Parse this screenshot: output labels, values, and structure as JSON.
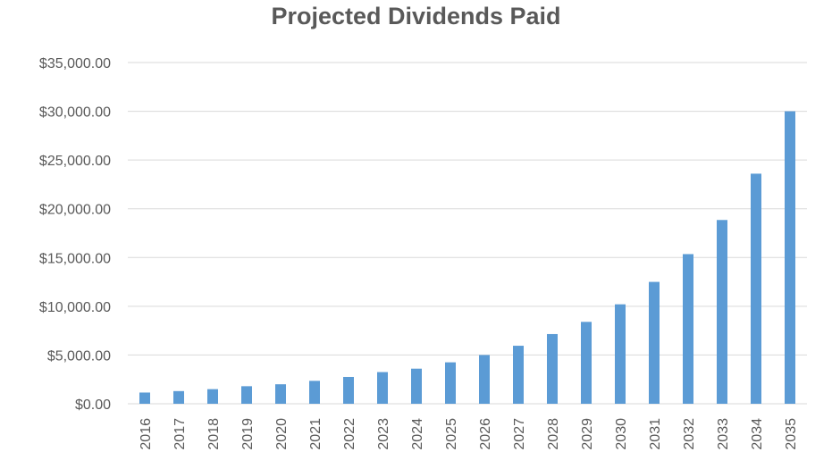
{
  "chart_data": {
    "type": "bar",
    "title": "Projected Dividends Paid",
    "xlabel": "",
    "ylabel": "",
    "ylim": [
      0,
      35000
    ],
    "yticks": [
      "$0.00",
      "$5,000.00",
      "$10,000.00",
      "$15,000.00",
      "$20,000.00",
      "$25,000.00",
      "$30,000.00",
      "$35,000.00"
    ],
    "categories": [
      "2016",
      "2017",
      "2018",
      "2019",
      "2020",
      "2021",
      "2022",
      "2023",
      "2024",
      "2025",
      "2026",
      "2027",
      "2028",
      "2029",
      "2030",
      "2031",
      "2032",
      "2033",
      "2034",
      "2035"
    ],
    "values": [
      1150,
      1300,
      1500,
      1800,
      2000,
      2350,
      2750,
      3250,
      3600,
      4250,
      5000,
      5950,
      7150,
      8400,
      10200,
      12500,
      15350,
      18850,
      23600,
      30000
    ],
    "grid": true,
    "legend": "none",
    "colors": {
      "bar": "#5B9BD5",
      "grid": "#D9D9D9",
      "text": "#595959"
    }
  }
}
